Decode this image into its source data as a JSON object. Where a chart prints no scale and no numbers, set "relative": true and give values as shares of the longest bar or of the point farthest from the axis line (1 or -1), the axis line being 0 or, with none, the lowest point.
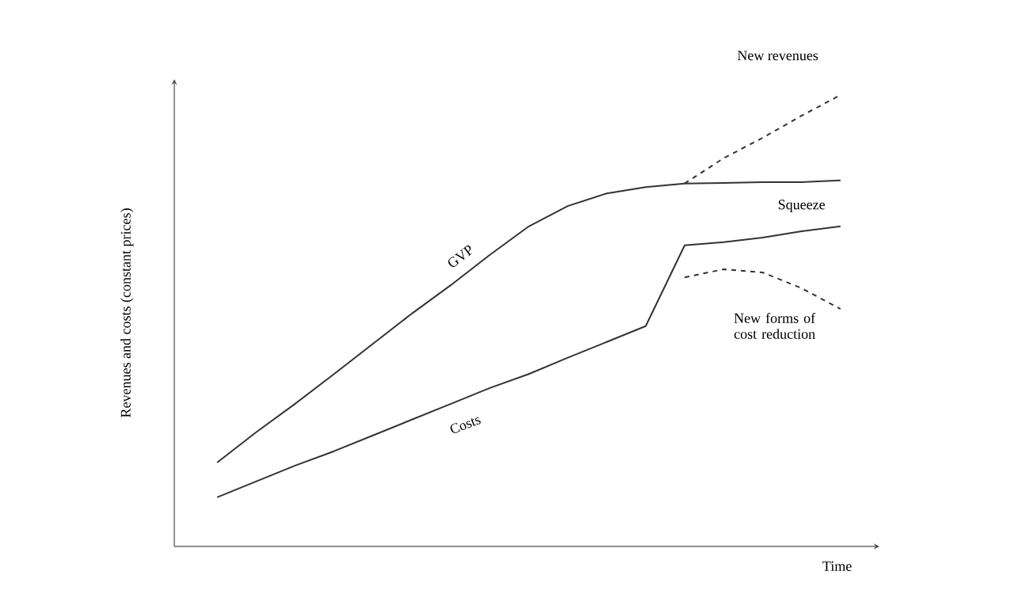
{
  "chart_data": {
    "type": "line",
    "relative": true,
    "xlabel": "Time",
    "ylabel": "Revenues and costs (constant prices)",
    "marker": "none",
    "annotations": [
      "Squeeze"
    ],
    "categories": [
      null,
      null,
      null,
      null,
      null,
      null,
      null,
      null,
      null,
      null,
      null,
      null,
      null,
      null,
      null,
      null,
      null
    ],
    "series": [
      {
        "name": "GVP",
        "color": "#333333",
        "line_style": "solid",
        "values": [
          0.186,
          0.253,
          0.316,
          0.382,
          0.449,
          0.516,
          0.579,
          0.646,
          0.709,
          0.754,
          0.782,
          0.796,
          0.804,
          0.805,
          0.807,
          0.807,
          0.811
        ]
      },
      {
        "name": "Costs",
        "color": "#333333",
        "line_style": "solid",
        "values": [
          0.109,
          0.144,
          0.179,
          0.211,
          0.246,
          0.281,
          0.316,
          0.351,
          0.382,
          0.418,
          0.453,
          0.488,
          0.667,
          0.674,
          0.684,
          0.698,
          0.709
        ]
      },
      {
        "name": "New revenues",
        "color": "#333333",
        "line_style": "dashed",
        "values": [
          null,
          null,
          null,
          null,
          null,
          null,
          null,
          null,
          null,
          null,
          null,
          null,
          0.804,
          0.86,
          0.905,
          0.954,
          1.0
        ]
      },
      {
        "name": "New forms of cost reduction",
        "color": "#333333",
        "line_style": "dashed",
        "values": [
          null,
          null,
          null,
          null,
          null,
          null,
          null,
          null,
          null,
          null,
          null,
          null,
          0.596,
          0.614,
          0.607,
          0.572,
          0.526
        ]
      }
    ]
  }
}
